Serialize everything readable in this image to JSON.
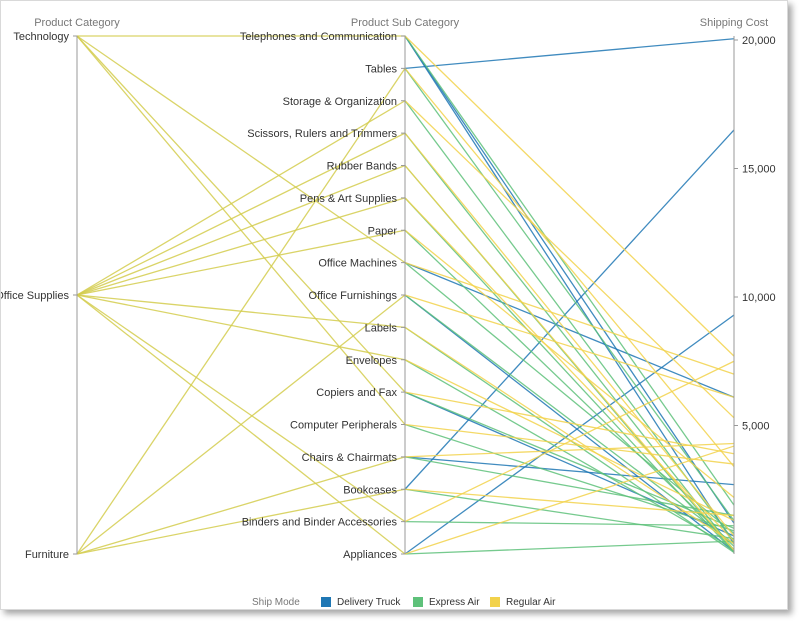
{
  "chart_data": {
    "type": "parallel-coordinates",
    "axes": {
      "category": {
        "title": "Product Category",
        "values": [
          "Technology",
          "Office Supplies",
          "Furniture"
        ]
      },
      "subcategory": {
        "title": "Product Sub Category",
        "values": [
          "Telephones and Communication",
          "Tables",
          "Storage & Organization",
          "Scissors, Rulers and Trimmers",
          "Rubber Bands",
          "Pens & Art Supplies",
          "Paper",
          "Office Machines",
          "Office Furnishings",
          "Labels",
          "Envelopes",
          "Copiers and Fax",
          "Computer Peripherals",
          "Chairs & Chairmats",
          "Bookcases",
          "Binders and Binder Accessories",
          "Appliances"
        ]
      },
      "shipping": {
        "title": "Shipping Cost",
        "range": [
          0,
          20000
        ],
        "ticks": [
          5000,
          10000,
          15000,
          20000
        ],
        "tick_labels": [
          "5,000",
          "10,000",
          "15,000",
          "20,000"
        ]
      }
    },
    "legend": {
      "title": "Ship Mode",
      "position": "bottom-center",
      "items": [
        {
          "name": "Delivery Truck",
          "color": "#1f77b4"
        },
        {
          "name": "Express Air",
          "color": "#5ec17a"
        },
        {
          "name": "Regular Air",
          "color": "#f2d24b"
        }
      ]
    },
    "category_links_color": "#d4cd4e",
    "category_links": [
      {
        "category": "Technology",
        "subcategory": "Telephones and Communication"
      },
      {
        "category": "Technology",
        "subcategory": "Office Machines"
      },
      {
        "category": "Technology",
        "subcategory": "Copiers and Fax"
      },
      {
        "category": "Technology",
        "subcategory": "Computer Peripherals"
      },
      {
        "category": "Office Supplies",
        "subcategory": "Storage & Organization"
      },
      {
        "category": "Office Supplies",
        "subcategory": "Scissors, Rulers and Trimmers"
      },
      {
        "category": "Office Supplies",
        "subcategory": "Rubber Bands"
      },
      {
        "category": "Office Supplies",
        "subcategory": "Pens & Art Supplies"
      },
      {
        "category": "Office Supplies",
        "subcategory": "Paper"
      },
      {
        "category": "Office Supplies",
        "subcategory": "Labels"
      },
      {
        "category": "Office Supplies",
        "subcategory": "Envelopes"
      },
      {
        "category": "Office Supplies",
        "subcategory": "Binders and Binder Accessories"
      },
      {
        "category": "Office Supplies",
        "subcategory": "Appliances"
      },
      {
        "category": "Furniture",
        "subcategory": "Tables"
      },
      {
        "category": "Furniture",
        "subcategory": "Office Furnishings"
      },
      {
        "category": "Furniture",
        "subcategory": "Chairs & Chairmats"
      },
      {
        "category": "Furniture",
        "subcategory": "Bookcases"
      }
    ],
    "series": [
      {
        "name": "Delivery Truck",
        "color": "#1f77b4",
        "links": [
          {
            "subcategory": "Tables",
            "cost": 20050
          },
          {
            "subcategory": "Bookcases",
            "cost": 16500
          },
          {
            "subcategory": "Appliances",
            "cost": 9300
          },
          {
            "subcategory": "Office Machines",
            "cost": 6100
          },
          {
            "subcategory": "Chairs & Chairmats",
            "cost": 2700
          },
          {
            "subcategory": "Copiers and Fax",
            "cost": 700
          },
          {
            "subcategory": "Telephones and Communication",
            "cost": 400
          },
          {
            "subcategory": "Office Furnishings",
            "cost": 100
          },
          {
            "subcategory": "Telephones and Communication",
            "cost": 1200
          }
        ]
      },
      {
        "name": "Express Air",
        "color": "#5ec17a",
        "links": [
          {
            "subcategory": "Telephones and Communication",
            "cost": 1900
          },
          {
            "subcategory": "Storage & Organization",
            "cost": 500
          },
          {
            "subcategory": "Scissors, Rulers and Trimmers",
            "cost": 150
          },
          {
            "subcategory": "Rubber Bands",
            "cost": 80
          },
          {
            "subcategory": "Pens & Art Supplies",
            "cost": 60
          },
          {
            "subcategory": "Paper",
            "cost": 300
          },
          {
            "subcategory": "Office Machines",
            "cost": 800
          },
          {
            "subcategory": "Office Furnishings",
            "cost": 400
          },
          {
            "subcategory": "Labels",
            "cost": 60
          },
          {
            "subcategory": "Envelopes",
            "cost": 200
          },
          {
            "subcategory": "Copiers and Fax",
            "cost": 1000
          },
          {
            "subcategory": "Computer Peripherals",
            "cost": 900
          },
          {
            "subcategory": "Chairs & Chairmats",
            "cost": 1500
          },
          {
            "subcategory": "Bookcases",
            "cost": 600
          },
          {
            "subcategory": "Binders and Binder Accessories",
            "cost": 1100
          },
          {
            "subcategory": "Appliances",
            "cost": 500
          },
          {
            "subcategory": "Tables",
            "cost": 1300
          }
        ]
      },
      {
        "name": "Regular Air",
        "color": "#f2d24b",
        "links": [
          {
            "subcategory": "Telephones and Communication",
            "cost": 7700
          },
          {
            "subcategory": "Tables",
            "cost": 3400
          },
          {
            "subcategory": "Storage & Organization",
            "cost": 5300
          },
          {
            "subcategory": "Scissors, Rulers and Trimmers",
            "cost": 700
          },
          {
            "subcategory": "Rubber Bands",
            "cost": 150
          },
          {
            "subcategory": "Pens & Art Supplies",
            "cost": 500
          },
          {
            "subcategory": "Paper",
            "cost": 2200
          },
          {
            "subcategory": "Office Machines",
            "cost": 7000
          },
          {
            "subcategory": "Office Furnishings",
            "cost": 6100
          },
          {
            "subcategory": "Labels",
            "cost": 400
          },
          {
            "subcategory": "Envelopes",
            "cost": 1300
          },
          {
            "subcategory": "Copiers and Fax",
            "cost": 3900
          },
          {
            "subcategory": "Computer Peripherals",
            "cost": 3500
          },
          {
            "subcategory": "Chairs & Chairmats",
            "cost": 4300
          },
          {
            "subcategory": "Bookcases",
            "cost": 1500
          },
          {
            "subcategory": "Binders and Binder Accessories",
            "cost": 7500
          },
          {
            "subcategory": "Appliances",
            "cost": 4200
          }
        ]
      }
    ]
  }
}
